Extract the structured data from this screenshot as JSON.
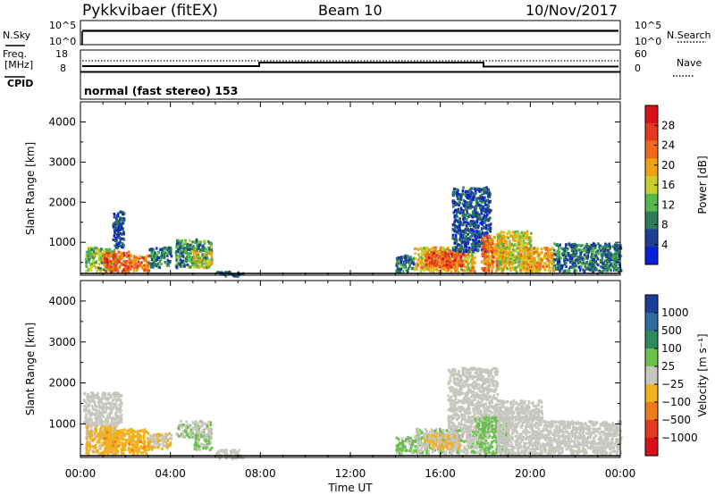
{
  "header": {
    "station": "Pykkvibaer (fitEX)",
    "beam": "Beam 10",
    "date": "10/Nov/2017"
  },
  "left_labels": {
    "nsky": "N.Sky",
    "freq": "Freq.",
    "freq_unit": "[MHz]",
    "cpid": "CPID"
  },
  "right_labels": {
    "nsearch": "N.Search",
    "nave": "Nave"
  },
  "mode_text": "normal (fast stereo) 153",
  "noise_axis": {
    "ticks_left": [
      "10^5",
      "10^0"
    ],
    "ticks_right": [
      "10^5",
      "10^0"
    ]
  },
  "freq_axis": {
    "ticks_left": [
      "18",
      "8"
    ],
    "ticks_right": [
      "60",
      "0"
    ]
  },
  "colors": {
    "power": [
      "#0a1fd8",
      "#1e3f96",
      "#2e7d5a",
      "#54b84d",
      "#c8cf2a",
      "#f0a010",
      "#ee6a1a",
      "#e53a1d",
      "#d9101a"
    ],
    "velocity": [
      "#1a3e9a",
      "#2f6aa0",
      "#2e8a5e",
      "#6ac04b",
      "#c7c7c0",
      "#f0b020",
      "#ee7a1a",
      "#e53a1d",
      "#d9101a"
    ]
  },
  "chart_data": [
    {
      "type": "heatmap",
      "title": "",
      "ylabel": "Slant Range [km]",
      "xlabel": "",
      "ylim": [
        180,
        4500
      ],
      "xlim": [
        0,
        24
      ],
      "y_ticks": [
        "1000",
        "2000",
        "3000",
        "4000"
      ],
      "x_ticks": [
        "00:00",
        "04:00",
        "08:00",
        "12:00",
        "16:00",
        "20:00",
        "00:00"
      ],
      "colorbar": {
        "label": "Power [dB]",
        "ticks": [
          "4",
          "8",
          "12",
          "16",
          "20",
          "24",
          "28"
        ],
        "range": [
          0,
          32
        ]
      },
      "regions": [
        {
          "t0": 0.2,
          "t1": 1.6,
          "r0": 300,
          "r1": 900,
          "level": 14
        },
        {
          "t0": 1.0,
          "t1": 2.2,
          "r0": 300,
          "r1": 800,
          "level": 24
        },
        {
          "t0": 1.4,
          "t1": 1.9,
          "r0": 900,
          "r1": 1800,
          "level": 6
        },
        {
          "t0": 2.2,
          "t1": 3.0,
          "r0": 300,
          "r1": 700,
          "level": 22
        },
        {
          "t0": 3.0,
          "t1": 4.0,
          "r0": 400,
          "r1": 900,
          "level": 8
        },
        {
          "t0": 4.2,
          "t1": 5.8,
          "r0": 400,
          "r1": 1100,
          "level": 10
        },
        {
          "t0": 5.0,
          "t1": 5.8,
          "r0": 400,
          "r1": 800,
          "level": 16
        },
        {
          "t0": 6.0,
          "t1": 7.2,
          "r0": 180,
          "r1": 300,
          "level": 6
        },
        {
          "t0": 14.0,
          "t1": 14.8,
          "r0": 300,
          "r1": 700,
          "level": 8
        },
        {
          "t0": 14.8,
          "t1": 17.5,
          "r0": 300,
          "r1": 900,
          "level": 18
        },
        {
          "t0": 15.3,
          "t1": 17.0,
          "r0": 400,
          "r1": 800,
          "level": 25
        },
        {
          "t0": 16.5,
          "t1": 18.2,
          "r0": 800,
          "r1": 2400,
          "level": 6
        },
        {
          "t0": 17.8,
          "t1": 18.8,
          "r0": 300,
          "r1": 1200,
          "level": 22
        },
        {
          "t0": 18.5,
          "t1": 20.0,
          "r0": 300,
          "r1": 1300,
          "level": 16
        },
        {
          "t0": 19.5,
          "t1": 21.0,
          "r0": 300,
          "r1": 900,
          "level": 20
        },
        {
          "t0": 21.0,
          "t1": 24.0,
          "r0": 300,
          "r1": 1000,
          "level": 8
        }
      ]
    },
    {
      "type": "heatmap",
      "title": "",
      "ylabel": "Slant Range [km]",
      "xlabel": "Time UT",
      "ylim": [
        180,
        4500
      ],
      "xlim": [
        0,
        24
      ],
      "y_ticks": [
        "1000",
        "2000",
        "3000",
        "4000"
      ],
      "x_ticks": [
        "00:00",
        "04:00",
        "08:00",
        "12:00",
        "16:00",
        "20:00",
        "00:00"
      ],
      "colorbar": {
        "label": "Velocity [m s⁻¹]",
        "ticks": [
          "1000",
          "500",
          "100",
          "25",
          "−25",
          "−100",
          "−500",
          "−1000"
        ],
        "range": [
          -1200,
          1200
        ]
      },
      "regions": [
        {
          "t0": 0.2,
          "t1": 1.6,
          "r0": 300,
          "r1": 1000,
          "level": -200
        },
        {
          "t0": 0.1,
          "t1": 1.8,
          "r0": 1000,
          "r1": 1800,
          "level": 0
        },
        {
          "t0": 1.0,
          "t1": 3.0,
          "r0": 300,
          "r1": 900,
          "level": -300
        },
        {
          "t0": 3.0,
          "t1": 4.0,
          "r0": 400,
          "r1": 800,
          "level": -120
        },
        {
          "t0": 4.2,
          "t1": 5.8,
          "r0": 700,
          "r1": 1100,
          "level": 60
        },
        {
          "t0": 5.0,
          "t1": 5.8,
          "r0": 400,
          "r1": 800,
          "level": 150
        },
        {
          "t0": 6.0,
          "t1": 7.2,
          "r0": 180,
          "r1": 400,
          "level": 0
        },
        {
          "t0": 14.0,
          "t1": 14.8,
          "r0": 300,
          "r1": 700,
          "level": 200
        },
        {
          "t0": 14.8,
          "t1": 17.5,
          "r0": 300,
          "r1": 900,
          "level": 80
        },
        {
          "t0": 15.2,
          "t1": 16.8,
          "r0": 400,
          "r1": 800,
          "level": -150
        },
        {
          "t0": 16.3,
          "t1": 18.5,
          "r0": 900,
          "r1": 2400,
          "level": 0
        },
        {
          "t0": 17.5,
          "t1": 19.0,
          "r0": 300,
          "r1": 1200,
          "level": 200
        },
        {
          "t0": 18.5,
          "t1": 20.5,
          "r0": 300,
          "r1": 1600,
          "level": 0
        },
        {
          "t0": 20.5,
          "t1": 24.0,
          "r0": 300,
          "r1": 1100,
          "level": 0
        }
      ]
    }
  ]
}
